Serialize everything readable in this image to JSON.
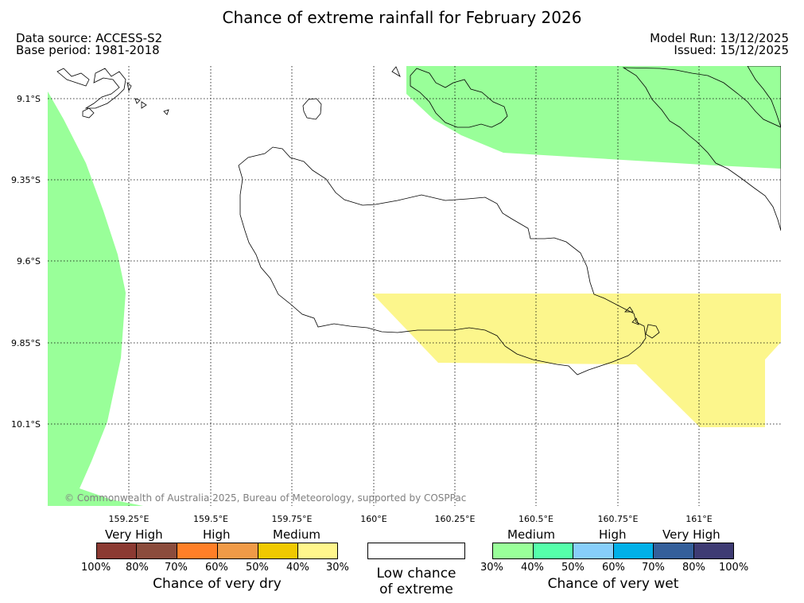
{
  "title": "Chance of extreme rainfall for February 2026",
  "data_source": "Data source: ACCESS-S2",
  "base_period": "Base period: 1981-2018",
  "model_run": "Model Run: 13/12/2025",
  "issued": "Issued: 15/12/2025",
  "copyright": "© Commonwealth of Australia 2025, Bureau of Meteorology, supported by COSPPac",
  "map": {
    "lat_labels": [
      "9.1°S",
      "9.35°S",
      "9.6°S",
      "9.85°S",
      "10.1°S"
    ],
    "lon_labels": [
      "159.25°E",
      "159.5°E",
      "159.75°E",
      "160°E",
      "160.25°E",
      "160.5°E",
      "160.75°E",
      "161°E"
    ],
    "regions": [
      {
        "name": "west-edge-wet",
        "category": "Medium wet (30-40%)",
        "color": "#99ff99"
      },
      {
        "name": "north-east-wet",
        "category": "Medium wet (30-40%)",
        "color": "#99ff99"
      },
      {
        "name": "south-east-dry",
        "category": "Medium dry (30-40%)",
        "color": "#fcf68c"
      }
    ]
  },
  "legend": {
    "dry": {
      "headers": [
        "Very High",
        "High",
        "Medium"
      ],
      "colors": [
        "#8b3a32",
        "#8b4c3c",
        "#ff7f27",
        "#f09a47",
        "#f0c900",
        "#fff68c"
      ],
      "ticks": [
        "100%",
        "80%",
        "70%",
        "60%",
        "50%",
        "40%",
        "30%"
      ],
      "caption": "Chance of very dry"
    },
    "low": {
      "color": "#ffffff",
      "caption_line1": "Low chance",
      "caption_line2": "of extreme"
    },
    "wet": {
      "headers": [
        "Medium",
        "High",
        "Very High"
      ],
      "colors": [
        "#99ff99",
        "#55ffaa",
        "#87cefa",
        "#00b0e8",
        "#345f9a",
        "#3e3b73"
      ],
      "ticks": [
        "30%",
        "40%",
        "50%",
        "60%",
        "70%",
        "80%",
        "100%"
      ],
      "caption": "Chance of very wet"
    }
  }
}
